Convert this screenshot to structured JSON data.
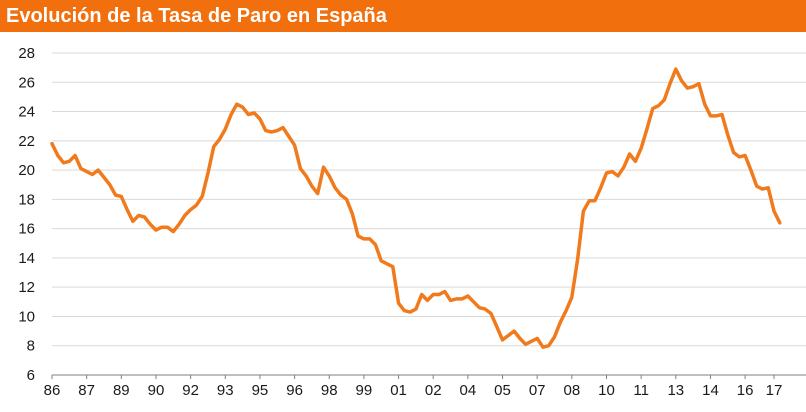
{
  "title": "Evolución de la Tasa de Paro en España",
  "colors": {
    "banner": "#f26f0e",
    "line": "#f07a1c",
    "grid": "#d9d9d9",
    "axis": "#7f7f7f"
  },
  "chart_data": {
    "type": "line",
    "title": "Evolución de la Tasa de Paro en España",
    "xlabel": "",
    "ylabel": "",
    "ylim": [
      6,
      28
    ],
    "xlim": [
      1986.0,
      2017.25
    ],
    "y_ticks": [
      6,
      8,
      10,
      12,
      14,
      16,
      18,
      20,
      22,
      24,
      26,
      28
    ],
    "x_ticks": [
      {
        "label": "86",
        "x": 1986
      },
      {
        "label": "87",
        "x": 1987.5
      },
      {
        "label": "89",
        "x": 1989
      },
      {
        "label": "90",
        "x": 1990.5
      },
      {
        "label": "92",
        "x": 1992
      },
      {
        "label": "93",
        "x": 1993.5
      },
      {
        "label": "95",
        "x": 1995
      },
      {
        "label": "96",
        "x": 1996.5
      },
      {
        "label": "98",
        "x": 1998
      },
      {
        "label": "99",
        "x": 1999.5
      },
      {
        "label": "01",
        "x": 2001
      },
      {
        "label": "02",
        "x": 2002.5
      },
      {
        "label": "04",
        "x": 2004
      },
      {
        "label": "05",
        "x": 2005.5
      },
      {
        "label": "07",
        "x": 2007
      },
      {
        "label": "08",
        "x": 2008.5
      },
      {
        "label": "10",
        "x": 2010
      },
      {
        "label": "11",
        "x": 2011.5
      },
      {
        "label": "13",
        "x": 2013
      },
      {
        "label": "14",
        "x": 2014.5
      },
      {
        "label": "16",
        "x": 2016
      },
      {
        "label": "17",
        "x": 2017.25
      }
    ],
    "grid": true,
    "series": [
      {
        "points": [
          [
            1986.0,
            21.8
          ],
          [
            1986.25,
            21.0
          ],
          [
            1986.5,
            20.5
          ],
          [
            1986.75,
            20.6
          ],
          [
            1987.0,
            21.0
          ],
          [
            1987.25,
            20.1
          ],
          [
            1987.5,
            19.9
          ],
          [
            1987.75,
            19.7
          ],
          [
            1988.0,
            20.0
          ],
          [
            1988.25,
            19.5
          ],
          [
            1988.5,
            19.0
          ],
          [
            1988.75,
            18.3
          ],
          [
            1989.0,
            18.2
          ],
          [
            1989.25,
            17.3
          ],
          [
            1989.5,
            16.5
          ],
          [
            1989.75,
            16.9
          ],
          [
            1990.0,
            16.8
          ],
          [
            1990.25,
            16.3
          ],
          [
            1990.5,
            15.9
          ],
          [
            1990.75,
            16.1
          ],
          [
            1991.0,
            16.1
          ],
          [
            1991.25,
            15.8
          ],
          [
            1991.5,
            16.3
          ],
          [
            1991.75,
            16.9
          ],
          [
            1992.0,
            17.3
          ],
          [
            1992.25,
            17.6
          ],
          [
            1992.5,
            18.2
          ],
          [
            1992.75,
            19.8
          ],
          [
            1993.0,
            21.6
          ],
          [
            1993.25,
            22.1
          ],
          [
            1993.5,
            22.8
          ],
          [
            1993.75,
            23.8
          ],
          [
            1994.0,
            24.5
          ],
          [
            1994.25,
            24.3
          ],
          [
            1994.5,
            23.8
          ],
          [
            1994.75,
            23.9
          ],
          [
            1995.0,
            23.5
          ],
          [
            1995.25,
            22.7
          ],
          [
            1995.5,
            22.6
          ],
          [
            1995.75,
            22.7
          ],
          [
            1996.0,
            22.9
          ],
          [
            1996.25,
            22.3
          ],
          [
            1996.5,
            21.7
          ],
          [
            1996.75,
            20.1
          ],
          [
            1997.0,
            19.6
          ],
          [
            1997.25,
            18.9
          ],
          [
            1997.5,
            18.4
          ],
          [
            1997.75,
            20.2
          ],
          [
            1998.0,
            19.6
          ],
          [
            1998.25,
            18.8
          ],
          [
            1998.5,
            18.3
          ],
          [
            1998.75,
            18.0
          ],
          [
            1999.0,
            17.0
          ],
          [
            1999.25,
            15.5
          ],
          [
            1999.5,
            15.3
          ],
          [
            1999.75,
            15.3
          ],
          [
            2000.0,
            14.9
          ],
          [
            2000.25,
            13.8
          ],
          [
            2000.5,
            13.6
          ],
          [
            2000.75,
            13.4
          ],
          [
            2001.0,
            10.9
          ],
          [
            2001.25,
            10.4
          ],
          [
            2001.5,
            10.3
          ],
          [
            2001.75,
            10.5
          ],
          [
            2002.0,
            11.5
          ],
          [
            2002.25,
            11.1
          ],
          [
            2002.5,
            11.5
          ],
          [
            2002.75,
            11.5
          ],
          [
            2003.0,
            11.7
          ],
          [
            2003.25,
            11.1
          ],
          [
            2003.5,
            11.2
          ],
          [
            2003.75,
            11.2
          ],
          [
            2004.0,
            11.4
          ],
          [
            2004.25,
            11.0
          ],
          [
            2004.5,
            10.6
          ],
          [
            2004.75,
            10.5
          ],
          [
            2005.0,
            10.2
          ],
          [
            2005.25,
            9.3
          ],
          [
            2005.5,
            8.4
          ],
          [
            2005.75,
            8.7
          ],
          [
            2006.0,
            9.0
          ],
          [
            2006.25,
            8.5
          ],
          [
            2006.5,
            8.1
          ],
          [
            2006.75,
            8.3
          ],
          [
            2007.0,
            8.5
          ],
          [
            2007.25,
            7.9
          ],
          [
            2007.5,
            8.0
          ],
          [
            2007.75,
            8.6
          ],
          [
            2008.0,
            9.6
          ],
          [
            2008.25,
            10.4
          ],
          [
            2008.5,
            11.3
          ],
          [
            2008.75,
            13.9
          ],
          [
            2009.0,
            17.2
          ],
          [
            2009.25,
            17.9
          ],
          [
            2009.5,
            17.9
          ],
          [
            2009.75,
            18.8
          ],
          [
            2010.0,
            19.8
          ],
          [
            2010.25,
            19.9
          ],
          [
            2010.5,
            19.6
          ],
          [
            2010.75,
            20.2
          ],
          [
            2011.0,
            21.1
          ],
          [
            2011.25,
            20.6
          ],
          [
            2011.5,
            21.5
          ],
          [
            2011.75,
            22.8
          ],
          [
            2012.0,
            24.2
          ],
          [
            2012.25,
            24.4
          ],
          [
            2012.5,
            24.8
          ],
          [
            2012.75,
            25.9
          ],
          [
            2013.0,
            26.9
          ],
          [
            2013.25,
            26.1
          ],
          [
            2013.5,
            25.6
          ],
          [
            2013.75,
            25.7
          ],
          [
            2014.0,
            25.9
          ],
          [
            2014.25,
            24.5
          ],
          [
            2014.5,
            23.7
          ],
          [
            2014.75,
            23.7
          ],
          [
            2015.0,
            23.8
          ],
          [
            2015.25,
            22.4
          ],
          [
            2015.5,
            21.2
          ],
          [
            2015.75,
            20.9
          ],
          [
            2016.0,
            21.0
          ],
          [
            2016.25,
            20.0
          ],
          [
            2016.5,
            18.9
          ],
          [
            2016.75,
            18.7
          ],
          [
            2017.0,
            18.8
          ],
          [
            2017.25,
            17.2
          ],
          [
            2017.5,
            16.4
          ]
        ]
      }
    ]
  }
}
